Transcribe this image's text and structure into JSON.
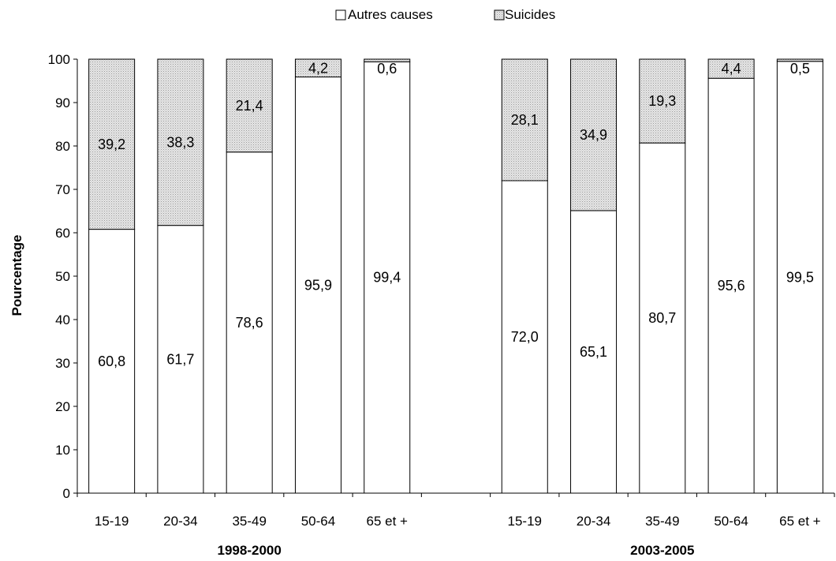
{
  "chart_data": {
    "type": "bar",
    "stacked": true,
    "ylabel": "Pourcentage",
    "xlabel": "",
    "ylim": [
      0,
      100
    ],
    "yticks": [
      0,
      10,
      20,
      30,
      40,
      50,
      60,
      70,
      80,
      90,
      100
    ],
    "grid": false,
    "legend": {
      "placement": "top-center",
      "entries": [
        "Autres causes",
        "Suicides"
      ]
    },
    "groups": [
      {
        "label": "1998-2000",
        "categories": [
          "15-19",
          "20-34",
          "35-49",
          "50-64",
          "65 et +"
        ],
        "series": [
          {
            "name": "Autres causes",
            "values": [
              60.8,
              61.7,
              78.6,
              95.9,
              99.4
            ],
            "labels": [
              "60,8",
              "61,7",
              "78,6",
              "95,9",
              "99,4"
            ]
          },
          {
            "name": "Suicides",
            "values": [
              39.2,
              38.3,
              21.4,
              4.2,
              0.6
            ],
            "labels": [
              "39,2",
              "38,3",
              "21,4",
              "4,2",
              "0,6"
            ]
          }
        ]
      },
      {
        "label": "2003-2005",
        "categories": [
          "15-19",
          "20-34",
          "35-49",
          "50-64",
          "65 et +"
        ],
        "series": [
          {
            "name": "Autres causes",
            "values": [
              72.0,
              65.1,
              80.7,
              95.6,
              99.5
            ],
            "labels": [
              "72,0",
              "65,1",
              "80,7",
              "95,6",
              "99,5"
            ]
          },
          {
            "name": "Suicides",
            "values": [
              28.1,
              34.9,
              19.3,
              4.4,
              0.5
            ],
            "labels": [
              "28,1",
              "34,9",
              "19,3",
              "4,4",
              "0,5"
            ]
          }
        ]
      }
    ],
    "colors": {
      "autres_fill": "#ffffff",
      "suicides_fill": "#dcdcdc",
      "stroke": "#000000"
    }
  }
}
